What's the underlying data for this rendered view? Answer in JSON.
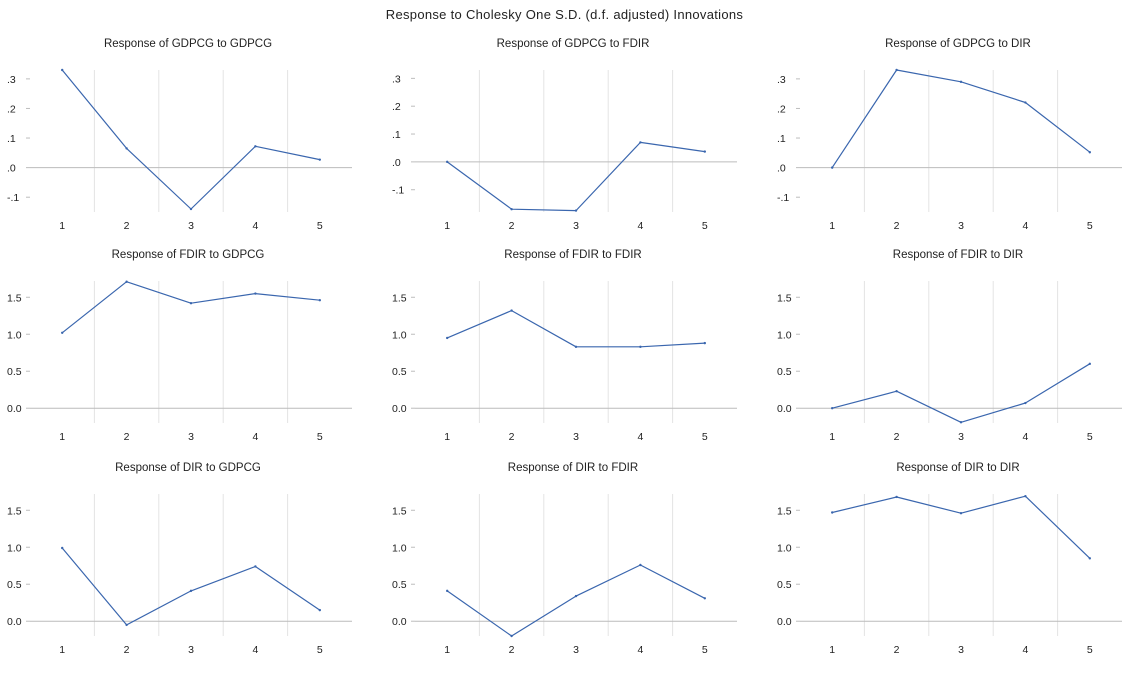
{
  "title": "Response to Cholesky One S.D. (d.f. adjusted) Innovations",
  "line_color": "#3a66ae",
  "chart_data": [
    {
      "type": "line",
      "title": "Response of GDPCG to GDPCG",
      "x": [
        1,
        2,
        3,
        4,
        5
      ],
      "values": [
        0.33,
        0.065,
        -0.14,
        0.072,
        0.027
      ],
      "ylim": [
        -0.15,
        0.33
      ],
      "yticks": [
        -0.1,
        0.0,
        0.1,
        0.2,
        0.3
      ],
      "ytick_labels": [
        "-.1",
        ".0",
        ".1",
        ".2",
        ".3"
      ]
    },
    {
      "type": "line",
      "title": "Response of GDPCG to FDIR",
      "x": [
        1,
        2,
        3,
        4,
        5
      ],
      "values": [
        0.0,
        -0.17,
        -0.175,
        0.07,
        0.037
      ],
      "ylim": [
        -0.18,
        0.33
      ],
      "yticks": [
        -0.1,
        0.0,
        0.1,
        0.2,
        0.3
      ],
      "ytick_labels": [
        "-.1",
        ".0",
        ".1",
        ".2",
        ".3"
      ]
    },
    {
      "type": "line",
      "title": "Response of GDPCG to DIR",
      "x": [
        1,
        2,
        3,
        4,
        5
      ],
      "values": [
        0.0,
        0.33,
        0.29,
        0.22,
        0.052
      ],
      "ylim": [
        -0.15,
        0.33
      ],
      "yticks": [
        -0.1,
        0.0,
        0.1,
        0.2,
        0.3
      ],
      "ytick_labels": [
        "-.1",
        ".0",
        ".1",
        ".2",
        ".3"
      ]
    },
    {
      "type": "line",
      "title": "Response of FDIR to GDPCG",
      "x": [
        1,
        2,
        3,
        4,
        5
      ],
      "values": [
        1.02,
        1.71,
        1.42,
        1.55,
        1.46
      ],
      "ylim": [
        -0.2,
        1.72
      ],
      "yticks": [
        0.0,
        0.5,
        1.0,
        1.5
      ],
      "ytick_labels": [
        "0.0",
        "0.5",
        "1.0",
        "1.5"
      ]
    },
    {
      "type": "line",
      "title": "Response of FDIR to FDIR",
      "x": [
        1,
        2,
        3,
        4,
        5
      ],
      "values": [
        0.95,
        1.32,
        0.83,
        0.83,
        0.88
      ],
      "ylim": [
        -0.2,
        1.72
      ],
      "yticks": [
        0.0,
        0.5,
        1.0,
        1.5
      ],
      "ytick_labels": [
        "0.0",
        "0.5",
        "1.0",
        "1.5"
      ]
    },
    {
      "type": "line",
      "title": "Response of FDIR to DIR",
      "x": [
        1,
        2,
        3,
        4,
        5
      ],
      "values": [
        0.0,
        0.23,
        -0.19,
        0.07,
        0.6
      ],
      "ylim": [
        -0.2,
        1.72
      ],
      "yticks": [
        0.0,
        0.5,
        1.0,
        1.5
      ],
      "ytick_labels": [
        "0.0",
        "0.5",
        "1.0",
        "1.5"
      ]
    },
    {
      "type": "line",
      "title": "Response of DIR to GDPCG",
      "x": [
        1,
        2,
        3,
        4,
        5
      ],
      "values": [
        0.99,
        -0.05,
        0.41,
        0.74,
        0.15
      ],
      "ylim": [
        -0.2,
        1.72
      ],
      "yticks": [
        0.0,
        0.5,
        1.0,
        1.5
      ],
      "ytick_labels": [
        "0.0",
        "0.5",
        "1.0",
        "1.5"
      ]
    },
    {
      "type": "line",
      "title": "Response of DIR to FDIR",
      "x": [
        1,
        2,
        3,
        4,
        5
      ],
      "values": [
        0.41,
        -0.2,
        0.34,
        0.76,
        0.31
      ],
      "ylim": [
        -0.2,
        1.72
      ],
      "yticks": [
        0.0,
        0.5,
        1.0,
        1.5
      ],
      "ytick_labels": [
        "0.0",
        "0.5",
        "1.0",
        "1.5"
      ]
    },
    {
      "type": "line",
      "title": "Response of DIR to DIR",
      "x": [
        1,
        2,
        3,
        4,
        5
      ],
      "values": [
        1.47,
        1.68,
        1.46,
        1.69,
        0.85
      ],
      "ylim": [
        -0.2,
        1.72
      ],
      "yticks": [
        0.0,
        0.5,
        1.0,
        1.5
      ],
      "ytick_labels": [
        "0.0",
        "0.5",
        "1.0",
        "1.5"
      ]
    }
  ]
}
